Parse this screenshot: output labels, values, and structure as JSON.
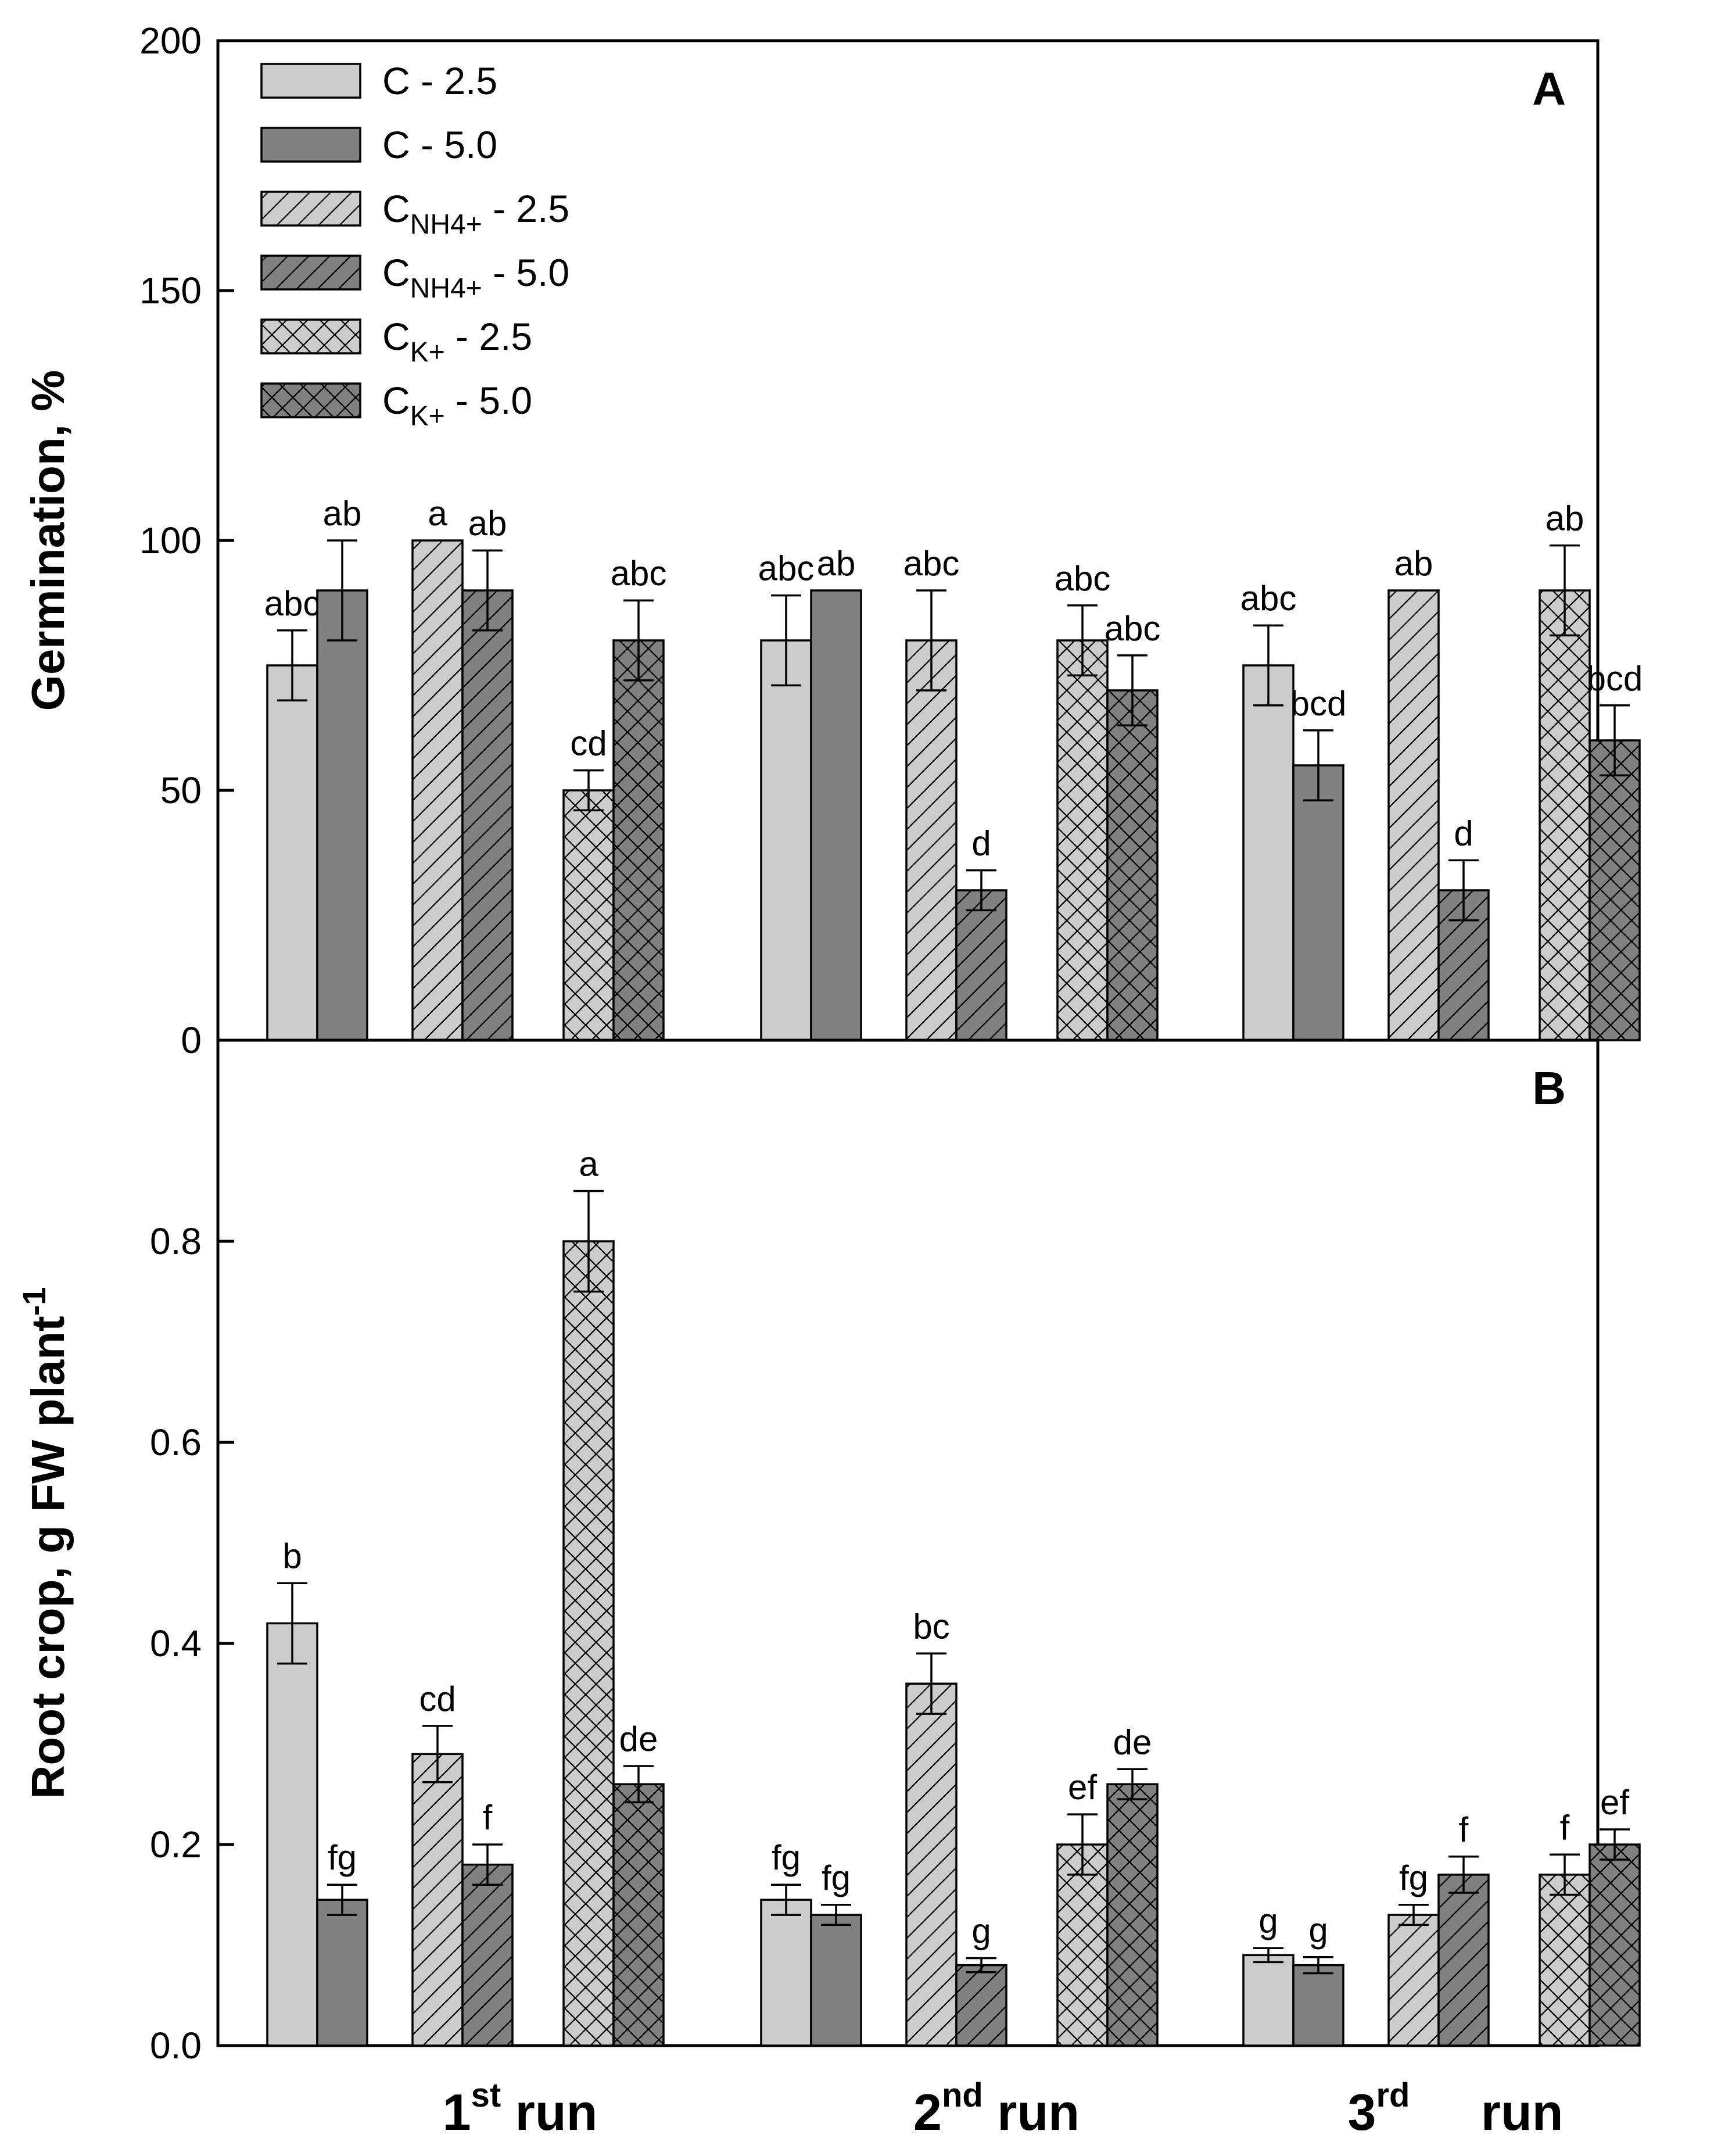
{
  "chart_data": {
    "type": "bar",
    "groups": [
      {
        "name": "1st run",
        "label_main": "1",
        "label_sup": "st",
        "label_rest": " run"
      },
      {
        "name": "2nd run",
        "label_main": "2",
        "label_sup": "nd",
        "label_rest": " run"
      },
      {
        "name": "3rd run",
        "label_main": "3",
        "label_sup": "rd",
        "label_rest": "run"
      }
    ],
    "legend": {
      "placement": "top-left",
      "entries": [
        {
          "key": "C-2.5",
          "base": "C",
          "sub": "",
          "rest": " - 2.5",
          "fill": "#cccccc",
          "pattern": "none"
        },
        {
          "key": "C-5.0",
          "base": "C",
          "sub": "",
          "rest": " - 5.0",
          "fill": "#808080",
          "pattern": "none"
        },
        {
          "key": "CNH4-2.5",
          "base": "C",
          "sub": "NH4+",
          "rest": " - 2.5",
          "fill": "#cccccc",
          "pattern": "diagonal"
        },
        {
          "key": "CNH4-5.0",
          "base": "C",
          "sub": "NH4+",
          "rest": " - 5.0",
          "fill": "#808080",
          "pattern": "diagonal"
        },
        {
          "key": "CK-2.5",
          "base": "C",
          "sub": "K+",
          "rest": " - 2.5",
          "fill": "#cccccc",
          "pattern": "crosshatch"
        },
        {
          "key": "CK-5.0",
          "base": "C",
          "sub": "K+",
          "rest": " - 5.0",
          "fill": "#808080",
          "pattern": "crosshatch"
        }
      ]
    },
    "panels": [
      {
        "id": "A",
        "letter": "A",
        "ylabel": "Germination, %",
        "ylim": [
          0,
          200
        ],
        "yticks": [
          "0",
          "50",
          "100",
          "150",
          "200"
        ],
        "bars": [
          {
            "group": 0,
            "series": "C-2.5",
            "value": 75,
            "err": 7,
            "sig": "abc"
          },
          {
            "group": 0,
            "series": "C-5.0",
            "value": 90,
            "err": 10,
            "sig": "ab"
          },
          {
            "group": 0,
            "series": "CNH4-2.5",
            "value": 100,
            "err": 0,
            "sig": "a"
          },
          {
            "group": 0,
            "series": "CNH4-5.0",
            "value": 90,
            "err": 8,
            "sig": "ab"
          },
          {
            "group": 0,
            "series": "CK-2.5",
            "value": 50,
            "err": 4,
            "sig": "cd"
          },
          {
            "group": 0,
            "series": "CK-5.0",
            "value": 80,
            "err": 8,
            "sig": "abc"
          },
          {
            "group": 1,
            "series": "C-2.5",
            "value": 80,
            "err": 9,
            "sig": "abc"
          },
          {
            "group": 1,
            "series": "C-5.0",
            "value": 90,
            "err": 0,
            "sig": "ab"
          },
          {
            "group": 1,
            "series": "CNH4-2.5",
            "value": 80,
            "err": 10,
            "sig": "abc"
          },
          {
            "group": 1,
            "series": "CNH4-5.0",
            "value": 30,
            "err": 4,
            "sig": "d"
          },
          {
            "group": 1,
            "series": "CK-2.5",
            "value": 80,
            "err": 7,
            "sig": "abc"
          },
          {
            "group": 1,
            "series": "CK-5.0",
            "value": 70,
            "err": 7,
            "sig": "abc"
          },
          {
            "group": 2,
            "series": "C-2.5",
            "value": 75,
            "err": 8,
            "sig": "abc"
          },
          {
            "group": 2,
            "series": "C-5.0",
            "value": 55,
            "err": 7,
            "sig": "bcd"
          },
          {
            "group": 2,
            "series": "CNH4-2.5",
            "value": 90,
            "err": 0,
            "sig": "ab"
          },
          {
            "group": 2,
            "series": "CNH4-5.0",
            "value": 30,
            "err": 6,
            "sig": "d"
          },
          {
            "group": 2,
            "series": "CK-2.5",
            "value": 90,
            "err": 9,
            "sig": "ab"
          },
          {
            "group": 2,
            "series": "CK-5.0",
            "value": 60,
            "err": 7,
            "sig": "bcd"
          }
        ]
      },
      {
        "id": "B",
        "letter": "B",
        "ylabel": "Root crop, g FW plant",
        "ylabel_sup": "-1",
        "ylim": [
          0,
          1.0
        ],
        "yticks": [
          "0.0",
          "0.2",
          "0.4",
          "0.6",
          "0.8"
        ],
        "bars": [
          {
            "group": 0,
            "series": "C-2.5",
            "value": 0.42,
            "err": 0.04,
            "sig": "b"
          },
          {
            "group": 0,
            "series": "C-5.0",
            "value": 0.145,
            "err": 0.015,
            "sig": "fg"
          },
          {
            "group": 0,
            "series": "CNH4-2.5",
            "value": 0.29,
            "err": 0.028,
            "sig": "cd"
          },
          {
            "group": 0,
            "series": "CNH4-5.0",
            "value": 0.18,
            "err": 0.02,
            "sig": "f"
          },
          {
            "group": 0,
            "series": "CK-2.5",
            "value": 0.8,
            "err": 0.05,
            "sig": "a"
          },
          {
            "group": 0,
            "series": "CK-5.0",
            "value": 0.26,
            "err": 0.018,
            "sig": "de"
          },
          {
            "group": 1,
            "series": "C-2.5",
            "value": 0.145,
            "err": 0.015,
            "sig": "fg"
          },
          {
            "group": 1,
            "series": "C-5.0",
            "value": 0.13,
            "err": 0.01,
            "sig": "fg"
          },
          {
            "group": 1,
            "series": "CNH4-2.5",
            "value": 0.36,
            "err": 0.03,
            "sig": "bc"
          },
          {
            "group": 1,
            "series": "CNH4-5.0",
            "value": 0.08,
            "err": 0.007,
            "sig": "g"
          },
          {
            "group": 1,
            "series": "CK-2.5",
            "value": 0.2,
            "err": 0.03,
            "sig": "ef"
          },
          {
            "group": 1,
            "series": "CK-5.0",
            "value": 0.26,
            "err": 0.015,
            "sig": "de"
          },
          {
            "group": 2,
            "series": "C-2.5",
            "value": 0.09,
            "err": 0.007,
            "sig": "g"
          },
          {
            "group": 2,
            "series": "C-5.0",
            "value": 0.08,
            "err": 0.008,
            "sig": "g"
          },
          {
            "group": 2,
            "series": "CNH4-2.5",
            "value": 0.13,
            "err": 0.01,
            "sig": "fg"
          },
          {
            "group": 2,
            "series": "CNH4-5.0",
            "value": 0.17,
            "err": 0.018,
            "sig": "f"
          },
          {
            "group": 2,
            "series": "CK-2.5",
            "value": 0.17,
            "err": 0.02,
            "sig": "f"
          },
          {
            "group": 2,
            "series": "CK-5.0",
            "value": 0.2,
            "err": 0.015,
            "sig": "ef"
          }
        ]
      }
    ]
  }
}
